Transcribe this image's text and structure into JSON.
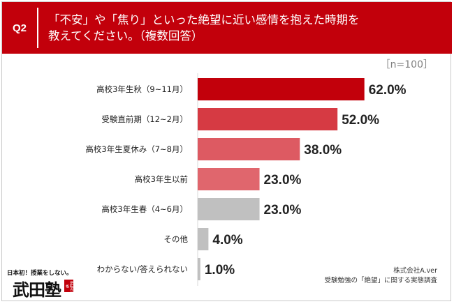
{
  "header": {
    "q_label": "Q2",
    "question_line1": "「不安」や「焦り」といった絶望に近い感情を抱えた時期を",
    "question_line2": "教えてください。（複数回答）"
  },
  "sample_note": "［n=100］",
  "colors": {
    "header_bg": "#c2000b",
    "series": [
      "#c2000b",
      "#d63a43",
      "#dd5a62",
      "#e0666d",
      "#c0c0c0",
      "#c0c0c0",
      "#c0c0c0"
    ]
  },
  "chart_data": {
    "type": "bar",
    "orientation": "horizontal",
    "categories": [
      "高校3年生秋（9~11月）",
      "受験直前期（12~2月）",
      "高校3年生夏休み（7~8月）",
      "高校3年生以前",
      "高校3年生春（4~6月）",
      "その他",
      "わからない/答えられない"
    ],
    "values": [
      62.0,
      52.0,
      38.0,
      23.0,
      23.0,
      4.0,
      1.0
    ],
    "value_labels": [
      "62.0%",
      "52.0%",
      "38.0%",
      "23.0%",
      "23.0%",
      "4.0%",
      "1.0%"
    ],
    "unit": "%",
    "xlim": [
      0,
      100
    ],
    "grid": false,
    "legend": "none"
  },
  "footer": {
    "company": "株式会社A.ver",
    "survey": "受験勉強の「絶望」に関する実態調査"
  },
  "logo": {
    "tagline": "日本初！授業をしない。",
    "mark": "武田塾",
    "stamp": "逆転合格"
  }
}
